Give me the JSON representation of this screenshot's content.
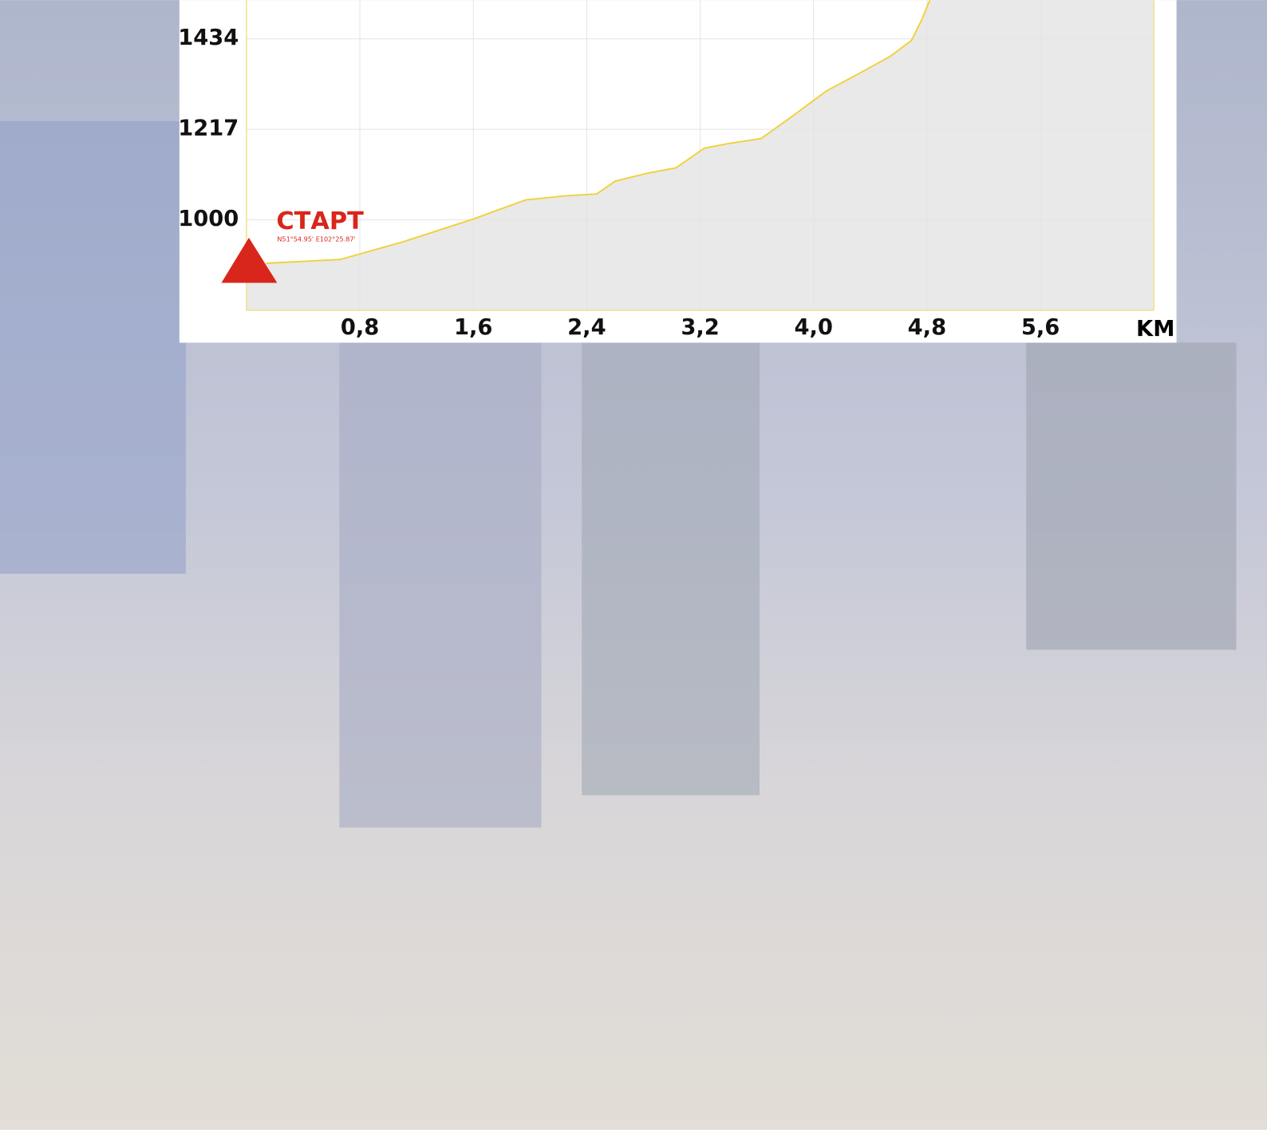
{
  "chart_data": {
    "type": "area",
    "x": [
      0.14,
      0.66,
      1.11,
      1.6,
      1.97,
      2.26,
      2.47,
      2.6,
      2.83,
      3.03,
      3.23,
      3.4,
      3.63,
      3.86,
      4.09,
      4.31,
      4.54,
      4.69,
      4.76,
      4.82
    ],
    "values": [
      896,
      905,
      948,
      1002,
      1048,
      1058,
      1062,
      1093,
      1112,
      1125,
      1172,
      1183,
      1195,
      1251,
      1309,
      1349,
      1392,
      1430,
      1478,
      1527
    ],
    "color": "#f0d030",
    "fill": "#e9e9e9",
    "xlim": [
      0,
      6.4
    ],
    "ylim": [
      783,
      1527
    ],
    "xticks": [
      {
        "value": 0.8,
        "label": "0,8"
      },
      {
        "value": 1.6,
        "label": "1,6"
      },
      {
        "value": 2.4,
        "label": "2,4"
      },
      {
        "value": 3.2,
        "label": "3,2"
      },
      {
        "value": 4.0,
        "label": "4,0"
      },
      {
        "value": 4.8,
        "label": "4,8"
      },
      {
        "value": 5.6,
        "label": "5,6"
      }
    ],
    "x_label": "KM",
    "yticks": [
      1000,
      1217,
      1434
    ],
    "grid": true,
    "annotations": [
      {
        "text": "СТАРТ",
        "color": "#d9261c"
      },
      {
        "text": "N51°54.95' E102°25.87'",
        "color": "#d9261c"
      }
    ]
  }
}
